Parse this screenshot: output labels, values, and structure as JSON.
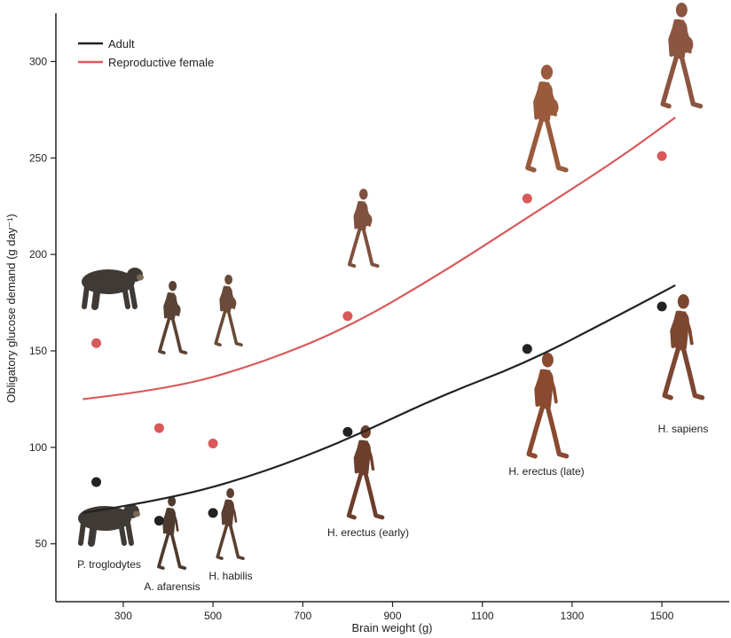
{
  "chart_data": {
    "type": "scatter",
    "xlabel": "Brain weight (g)",
    "ylabel": "Obligatory glucose demand (g day⁻¹)",
    "xlim": [
      150,
      1650
    ],
    "ylim": [
      20,
      325
    ],
    "x_ticks": [
      300,
      500,
      700,
      900,
      1100,
      1300,
      1500
    ],
    "y_ticks": [
      50,
      100,
      150,
      200,
      250,
      300
    ],
    "colors": {
      "adult": "#222222",
      "female": "#d9595a",
      "figure_skin": "#9a5a3c",
      "ape_fur": "#3f3a35"
    },
    "legend": [
      {
        "label": "Adult",
        "color": "#222222"
      },
      {
        "label": "Reproductive female",
        "color": "#d9595a"
      }
    ],
    "legend_position": "top-left",
    "series": [
      {
        "name": "Adult",
        "points": [
          [
            240,
            82
          ],
          [
            380,
            62
          ],
          [
            500,
            66
          ],
          [
            800,
            108
          ],
          [
            1200,
            151
          ],
          [
            1500,
            173
          ]
        ],
        "fit": [
          [
            210,
            66
          ],
          [
            400,
            73
          ],
          [
            600,
            86
          ],
          [
            800,
            104
          ],
          [
            1000,
            126
          ],
          [
            1200,
            144
          ],
          [
            1400,
            168
          ],
          [
            1530,
            184
          ]
        ]
      },
      {
        "name": "Reproductive female",
        "points": [
          [
            240,
            154
          ],
          [
            380,
            110
          ],
          [
            500,
            102
          ],
          [
            800,
            168
          ],
          [
            1200,
            229
          ],
          [
            1500,
            251
          ]
        ],
        "fit": [
          [
            210,
            125
          ],
          [
            400,
            130
          ],
          [
            600,
            143
          ],
          [
            800,
            162
          ],
          [
            1000,
            189
          ],
          [
            1200,
            219
          ],
          [
            1400,
            249
          ],
          [
            1530,
            271
          ]
        ]
      }
    ],
    "species": [
      "P. troglodytes",
      "A. afarensis",
      "H. habilis",
      "H. erectus (early)",
      "H. erectus (late)",
      "H. sapiens"
    ]
  }
}
